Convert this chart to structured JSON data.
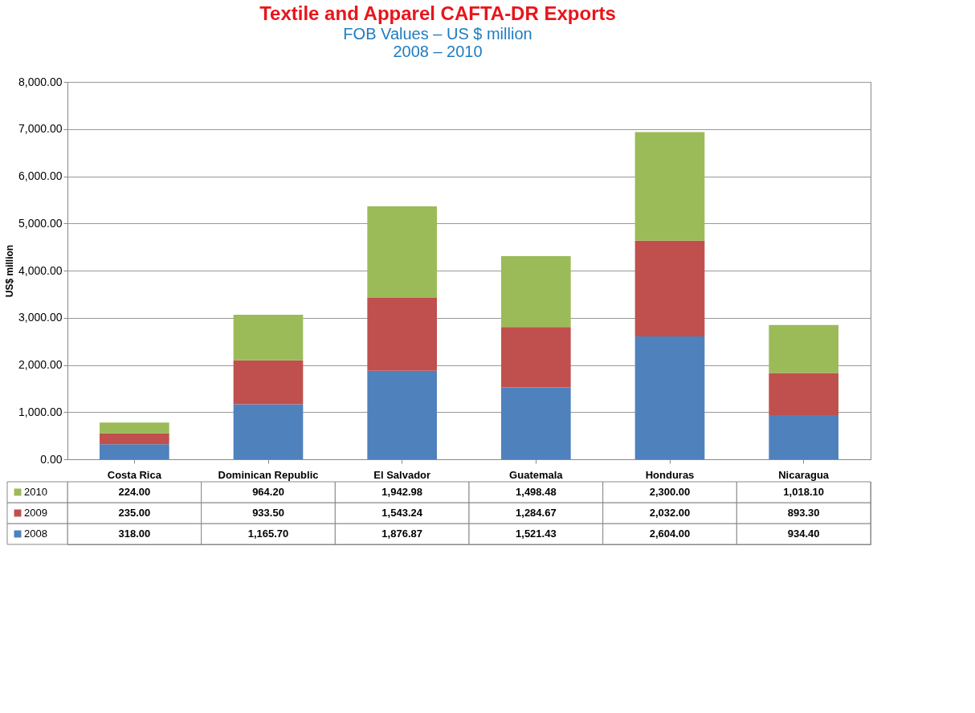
{
  "chart_data": {
    "type": "bar",
    "title": "Textile and Apparel CAFTA-DR Exports",
    "subtitle": "FOB Values – US $ million\n2008 – 2010",
    "ylabel": "US$ million",
    "categories": [
      "Costa Rica",
      "Dominican Republic",
      "El Salvador",
      "Guatemala",
      "Honduras",
      "Nicaragua"
    ],
    "stacked": true,
    "grid": "y",
    "legend": "bottom",
    "ylim": [
      0,
      8000
    ],
    "yticks": [
      {
        "value": 0,
        "label": "0.00"
      },
      {
        "value": 1000,
        "label": "1,000.00"
      },
      {
        "value": 2000,
        "label": "2,000.00"
      },
      {
        "value": 3000,
        "label": "3,000.00"
      },
      {
        "value": 4000,
        "label": "4,000.00"
      },
      {
        "value": 5000,
        "label": "5,000.00"
      },
      {
        "value": 6000,
        "label": "6,000.00"
      },
      {
        "value": 7000,
        "label": "7,000.00"
      },
      {
        "value": 8000,
        "label": "8,000.00"
      }
    ],
    "series": [
      {
        "name": "2008",
        "color": "#4f81bd",
        "values": [
          318.0,
          1165.7,
          1876.87,
          1521.43,
          2604.0,
          934.4
        ],
        "value_labels": [
          "318.00",
          "1,165.70",
          "1,876.87",
          "1,521.43",
          "2,604.00",
          "934.40"
        ]
      },
      {
        "name": "2009",
        "color": "#c0504d",
        "values": [
          235.0,
          933.5,
          1543.24,
          1284.67,
          2032.0,
          893.3
        ],
        "value_labels": [
          "235.00",
          "933.50",
          "1,543.24",
          "1,284.67",
          "2,032.00",
          "893.30"
        ]
      },
      {
        "name": "2010",
        "color": "#9bbb59",
        "values": [
          224.0,
          964.2,
          1942.98,
          1498.48,
          2300.0,
          1018.1
        ],
        "value_labels": [
          "224.00",
          "964.20",
          "1,942.98",
          "1,498.48",
          "2,300.00",
          "1,018.10"
        ]
      }
    ]
  }
}
